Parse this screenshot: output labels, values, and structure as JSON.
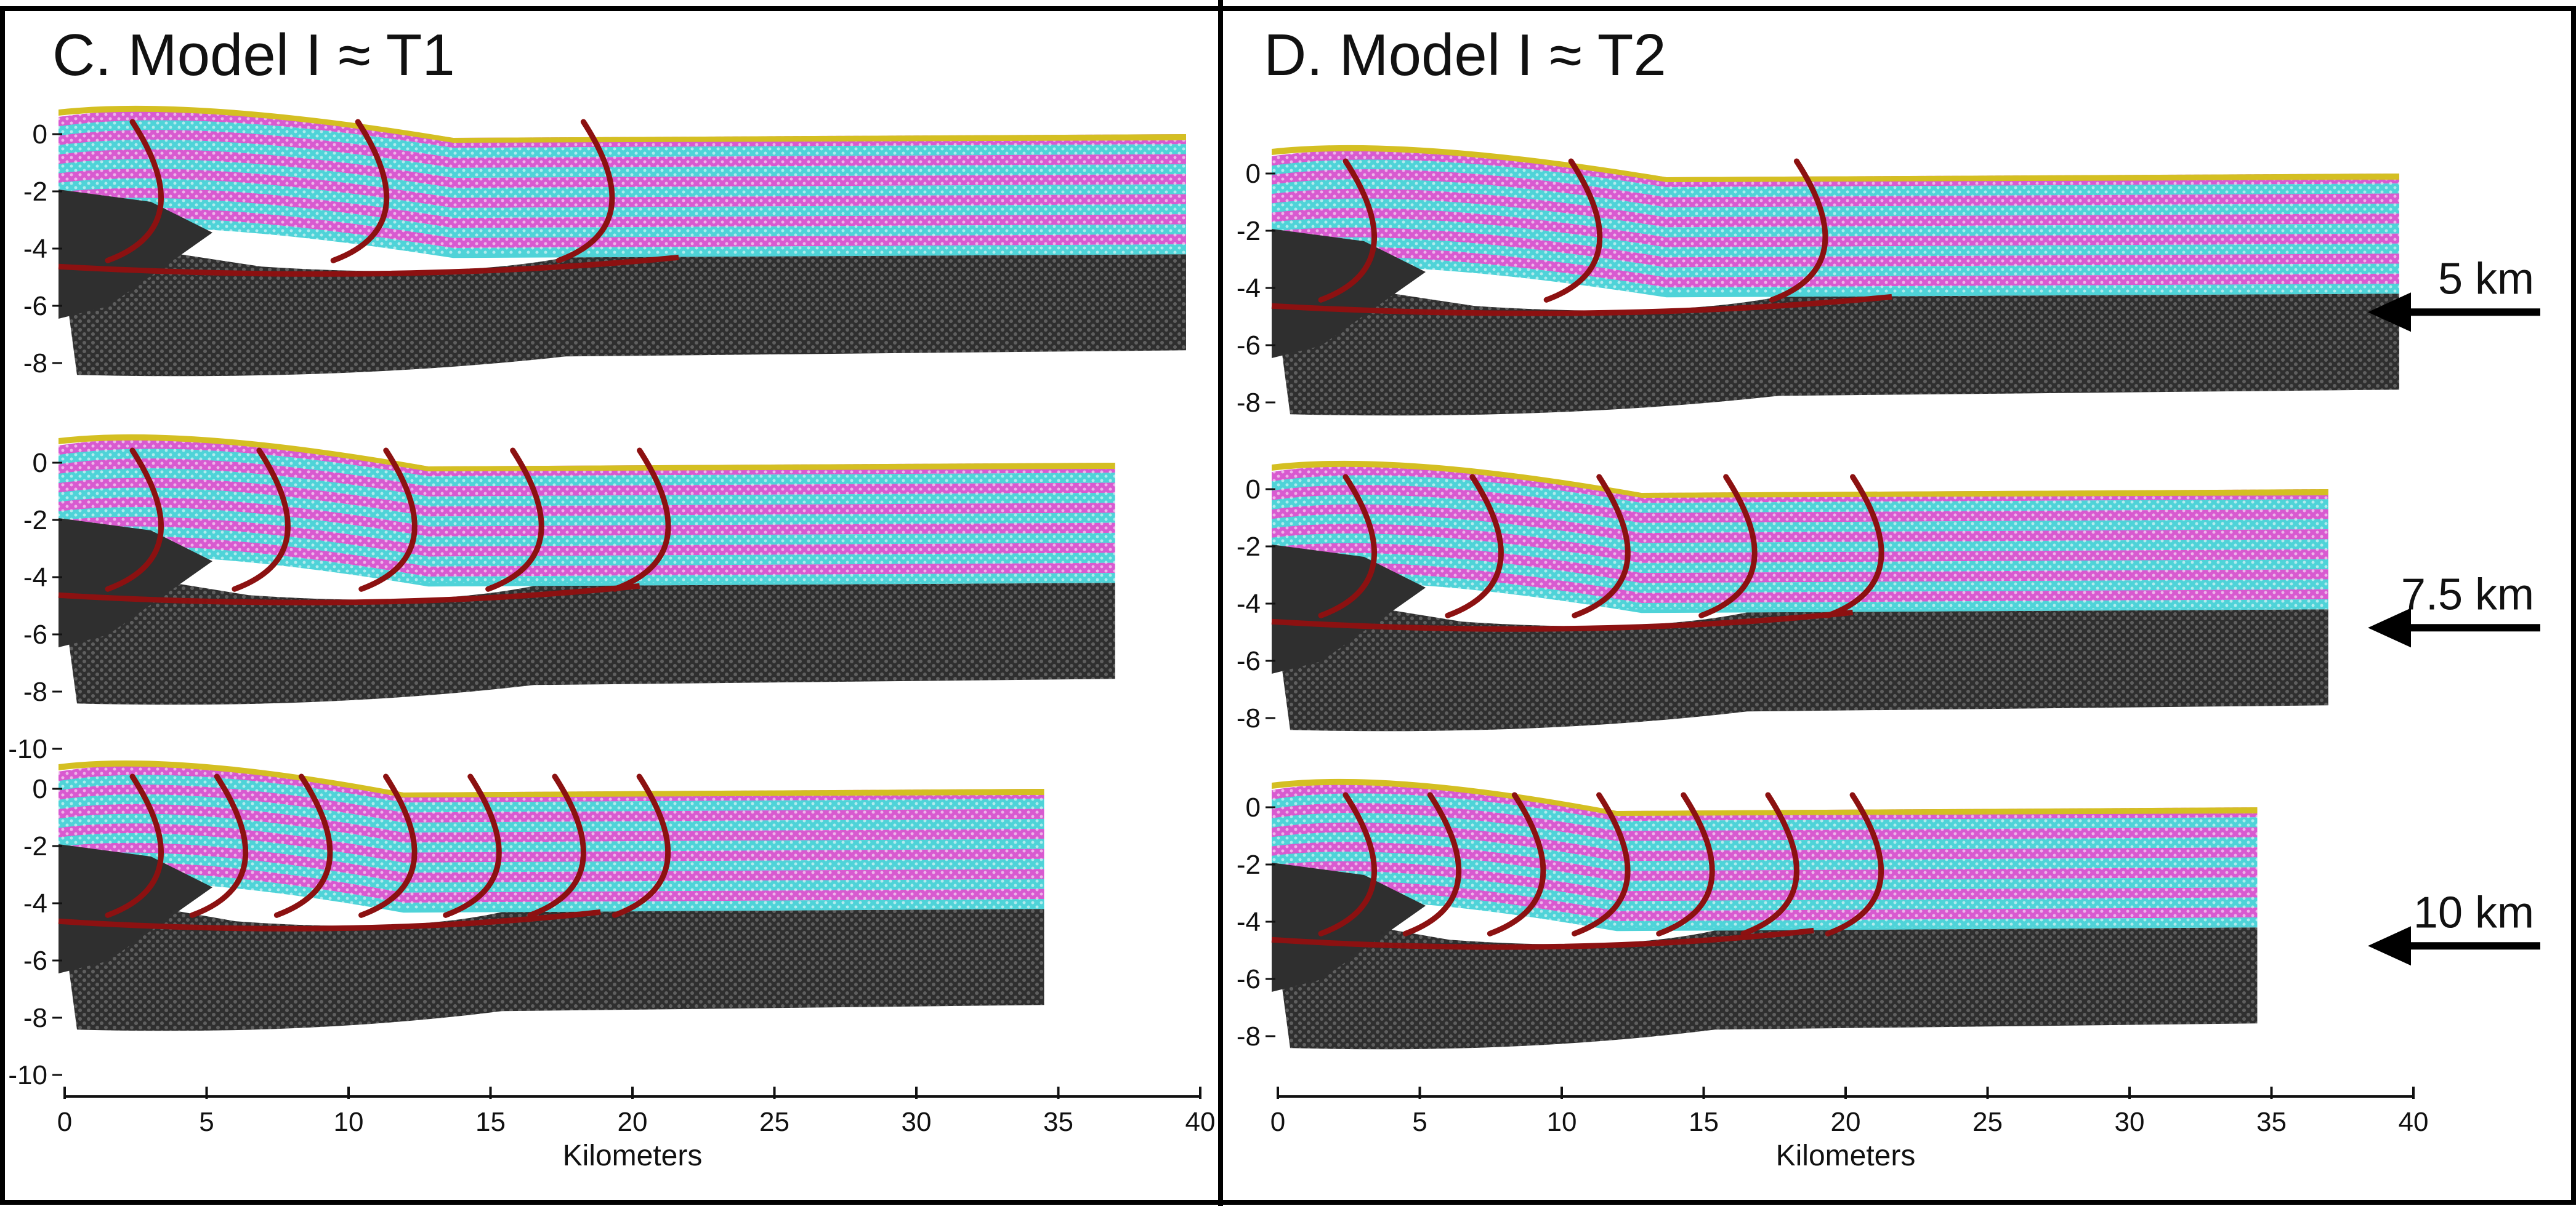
{
  "figure": {
    "colors": {
      "magenta": "#d85ad0",
      "cyan": "#4fd3d8",
      "basement": "#2f2f2f",
      "fault": "#8c1111",
      "sediment_top": "#d4bf22",
      "frame": "#000000"
    },
    "panels": [
      {
        "title": "C. Model I ≈ T1",
        "x_axis": {
          "label": "Kilometers",
          "ticks": [
            "0",
            "5",
            "10",
            "15",
            "20",
            "25",
            "30",
            "35",
            "40"
          ]
        },
        "sections": [
          {
            "shortening": "",
            "right_end_km": 39.5,
            "y_ticks": [
              "0",
              "-2",
              "-4",
              "-6",
              "-8"
            ]
          },
          {
            "shortening": "",
            "right_end_km": 37.0,
            "y_ticks": [
              "0",
              "-2",
              "-4",
              "-6",
              "-8",
              "-10"
            ]
          },
          {
            "shortening": "",
            "right_end_km": 34.5,
            "y_ticks": [
              "0",
              "-2",
              "-4",
              "-6",
              "-8",
              "-10"
            ]
          }
        ]
      },
      {
        "title": "D. Model I ≈ T2",
        "x_axis": {
          "label": "Kilometers",
          "ticks": [
            "0",
            "5",
            "10",
            "15",
            "20",
            "25",
            "30",
            "35",
            "40"
          ]
        },
        "sections": [
          {
            "shortening": "5 km",
            "right_end_km": 39.5,
            "y_ticks": [
              "0",
              "-2",
              "-4",
              "-6",
              "-8"
            ]
          },
          {
            "shortening": "7.5 km",
            "right_end_km": 37.0,
            "y_ticks": [
              "0",
              "-2",
              "-4",
              "-6",
              "-8"
            ]
          },
          {
            "shortening": "10 km",
            "right_end_km": 34.5,
            "y_ticks": [
              "0",
              "-2",
              "-4",
              "-6",
              "-8"
            ]
          }
        ]
      }
    ]
  }
}
